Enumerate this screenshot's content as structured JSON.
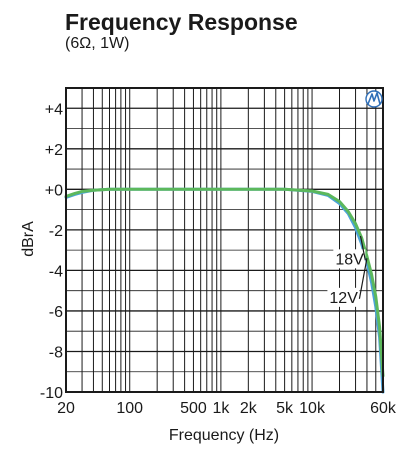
{
  "chart_data": {
    "type": "line",
    "title": "Frequency Response",
    "subtitle": "(6Ω, 1W)",
    "xlabel": "Frequency (Hz)",
    "ylabel": "dBrA",
    "x_scale": "log",
    "xlim": [
      20,
      60000
    ],
    "ylim": [
      -10,
      5
    ],
    "grid": true,
    "x_tick_labels": [
      {
        "value": 20,
        "label": "20"
      },
      {
        "value": 100,
        "label": "100"
      },
      {
        "value": 500,
        "label": "500"
      },
      {
        "value": 1000,
        "label": "1k"
      },
      {
        "value": 2000,
        "label": "2k"
      },
      {
        "value": 5000,
        "label": "5k"
      },
      {
        "value": 10000,
        "label": "10k"
      },
      {
        "value": 60000,
        "label": "60k"
      }
    ],
    "y_tick_labels": [
      {
        "value": 4,
        "label": "+4"
      },
      {
        "value": 2,
        "label": "+2"
      },
      {
        "value": 0,
        "label": "+0"
      },
      {
        "value": -2,
        "label": "-2"
      },
      {
        "value": -4,
        "label": "-4"
      },
      {
        "value": -6,
        "label": "-6"
      },
      {
        "value": -8,
        "label": "-8"
      },
      {
        "value": -10,
        "label": "-10"
      }
    ],
    "series": [
      {
        "name": "18V",
        "color": "#4aa3d9",
        "points": [
          [
            20,
            -0.4
          ],
          [
            25,
            -0.25
          ],
          [
            30,
            -0.15
          ],
          [
            40,
            -0.05
          ],
          [
            60,
            0
          ],
          [
            100,
            0
          ],
          [
            1000,
            0
          ],
          [
            5000,
            0
          ],
          [
            10000,
            -0.1
          ],
          [
            15000,
            -0.3
          ],
          [
            20000,
            -0.7
          ],
          [
            25000,
            -1.2
          ],
          [
            30000,
            -1.9
          ],
          [
            35000,
            -2.7
          ],
          [
            40000,
            -3.6
          ],
          [
            45000,
            -4.6
          ],
          [
            50000,
            -5.8
          ],
          [
            55000,
            -7.3
          ],
          [
            60000,
            -10
          ]
        ]
      },
      {
        "name": "12V",
        "color": "#5cb85c",
        "points": [
          [
            20,
            -0.35
          ],
          [
            25,
            -0.2
          ],
          [
            30,
            -0.1
          ],
          [
            40,
            -0.05
          ],
          [
            60,
            0
          ],
          [
            100,
            0
          ],
          [
            1000,
            0
          ],
          [
            5000,
            0
          ],
          [
            10000,
            -0.08
          ],
          [
            15000,
            -0.25
          ],
          [
            20000,
            -0.6
          ],
          [
            25000,
            -1.1
          ],
          [
            30000,
            -1.7
          ],
          [
            35000,
            -2.4
          ],
          [
            40000,
            -3.3
          ],
          [
            45000,
            -4.2
          ],
          [
            50000,
            -5.3
          ],
          [
            55000,
            -6.8
          ],
          [
            60000,
            -9.2
          ]
        ]
      }
    ],
    "annotations": [
      {
        "text": "18V",
        "x": 18000,
        "y": -3.7,
        "arrow_to": [
          34000,
          -2.3
        ]
      },
      {
        "text": "12V",
        "x": 15500,
        "y": -5.6,
        "arrow_to": [
          40000,
          -3.4
        ]
      }
    ]
  },
  "logo": {
    "name": "brand-logo-icon",
    "color": "#2f6fb8"
  }
}
